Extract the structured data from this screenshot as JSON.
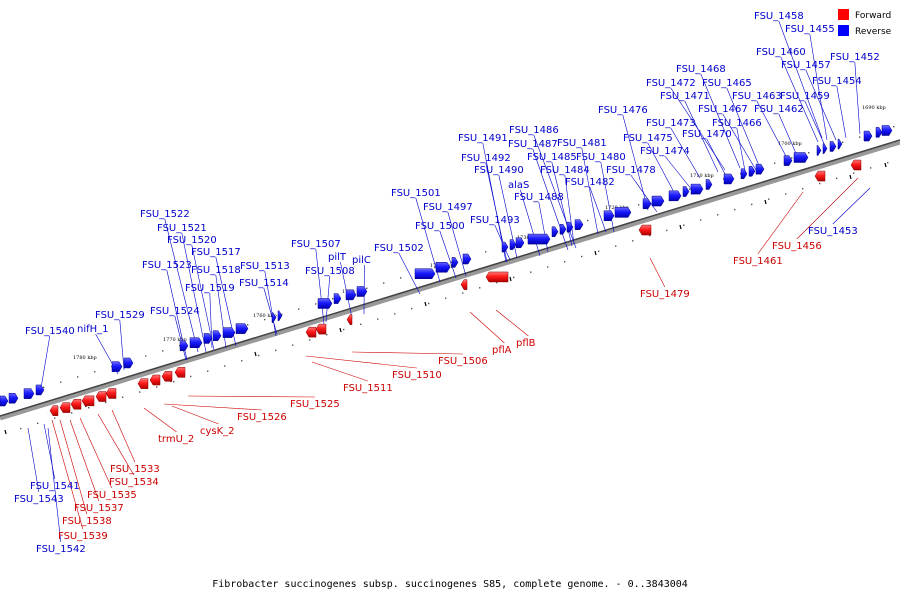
{
  "legend": {
    "forward": {
      "label": "Forward",
      "color": "#ff0000"
    },
    "reverse": {
      "label": "Reverse",
      "color": "#0000ff"
    }
  },
  "caption": "Fibrobacter succinogenes subsp. succinogenes S85, complete genome. - 0..3843004",
  "kbp_labels": [
    "1690 kbp",
    "1700 kbp",
    "1710 kbp",
    "1720 kbp",
    "1730 kbp",
    "1740 kbp",
    "1750 kbp",
    "1760 kbp",
    "1770 kbp",
    "1780 kbp"
  ],
  "reverse_labels": [
    "FSU_1458",
    "FSU_1455",
    "FSU_1460",
    "FSU_1457",
    "FSU_1452",
    "FSU_1454",
    "FSU_1468",
    "FSU_1472",
    "FSU_1465",
    "FSU_1471",
    "FSU_1463",
    "FSU_1459",
    "FSU_1476",
    "FSU_1467",
    "FSU_1462",
    "FSU_1473",
    "FSU_1466",
    "FSU_1475",
    "FSU_1470",
    "FSU_1486",
    "FSU_1491",
    "FSU_1487",
    "FSU_1481",
    "FSU_1474",
    "FSU_1492",
    "FSU_1485",
    "FSU_1480",
    "FSU_1490",
    "FSU_1484",
    "FSU_1478",
    "FSU_1482",
    "alaS",
    "FSU_1488",
    "FSU_1501",
    "FSU_1497",
    "FSU_1493",
    "FSU_1500",
    "FSU_1522",
    "FSU_1521",
    "FSU_1520",
    "FSU_1517",
    "FSU_1507",
    "FSU_1502",
    "pilT",
    "pilC",
    "FSU_1523",
    "FSU_1513",
    "FSU_1518",
    "FSU_1508",
    "FSU_1514",
    "FSU_1519",
    "FSU_1529",
    "FSU_1524",
    "nifH_1",
    "FSU_1540",
    "FSU_1541",
    "FSU_1543",
    "FSU_1542",
    "FSU_1453"
  ],
  "forward_labels": [
    "FSU_1479",
    "FSU_1461",
    "FSU_1456",
    "pflA",
    "pflB",
    "FSU_1506",
    "FSU_1510",
    "FSU_1511",
    "FSU_1525",
    "FSU_1526",
    "cysK_2",
    "trmU_2",
    "FSU_1533",
    "FSU_1534",
    "FSU_1535",
    "FSU_1537",
    "FSU_1538",
    "FSU_1539"
  ]
}
